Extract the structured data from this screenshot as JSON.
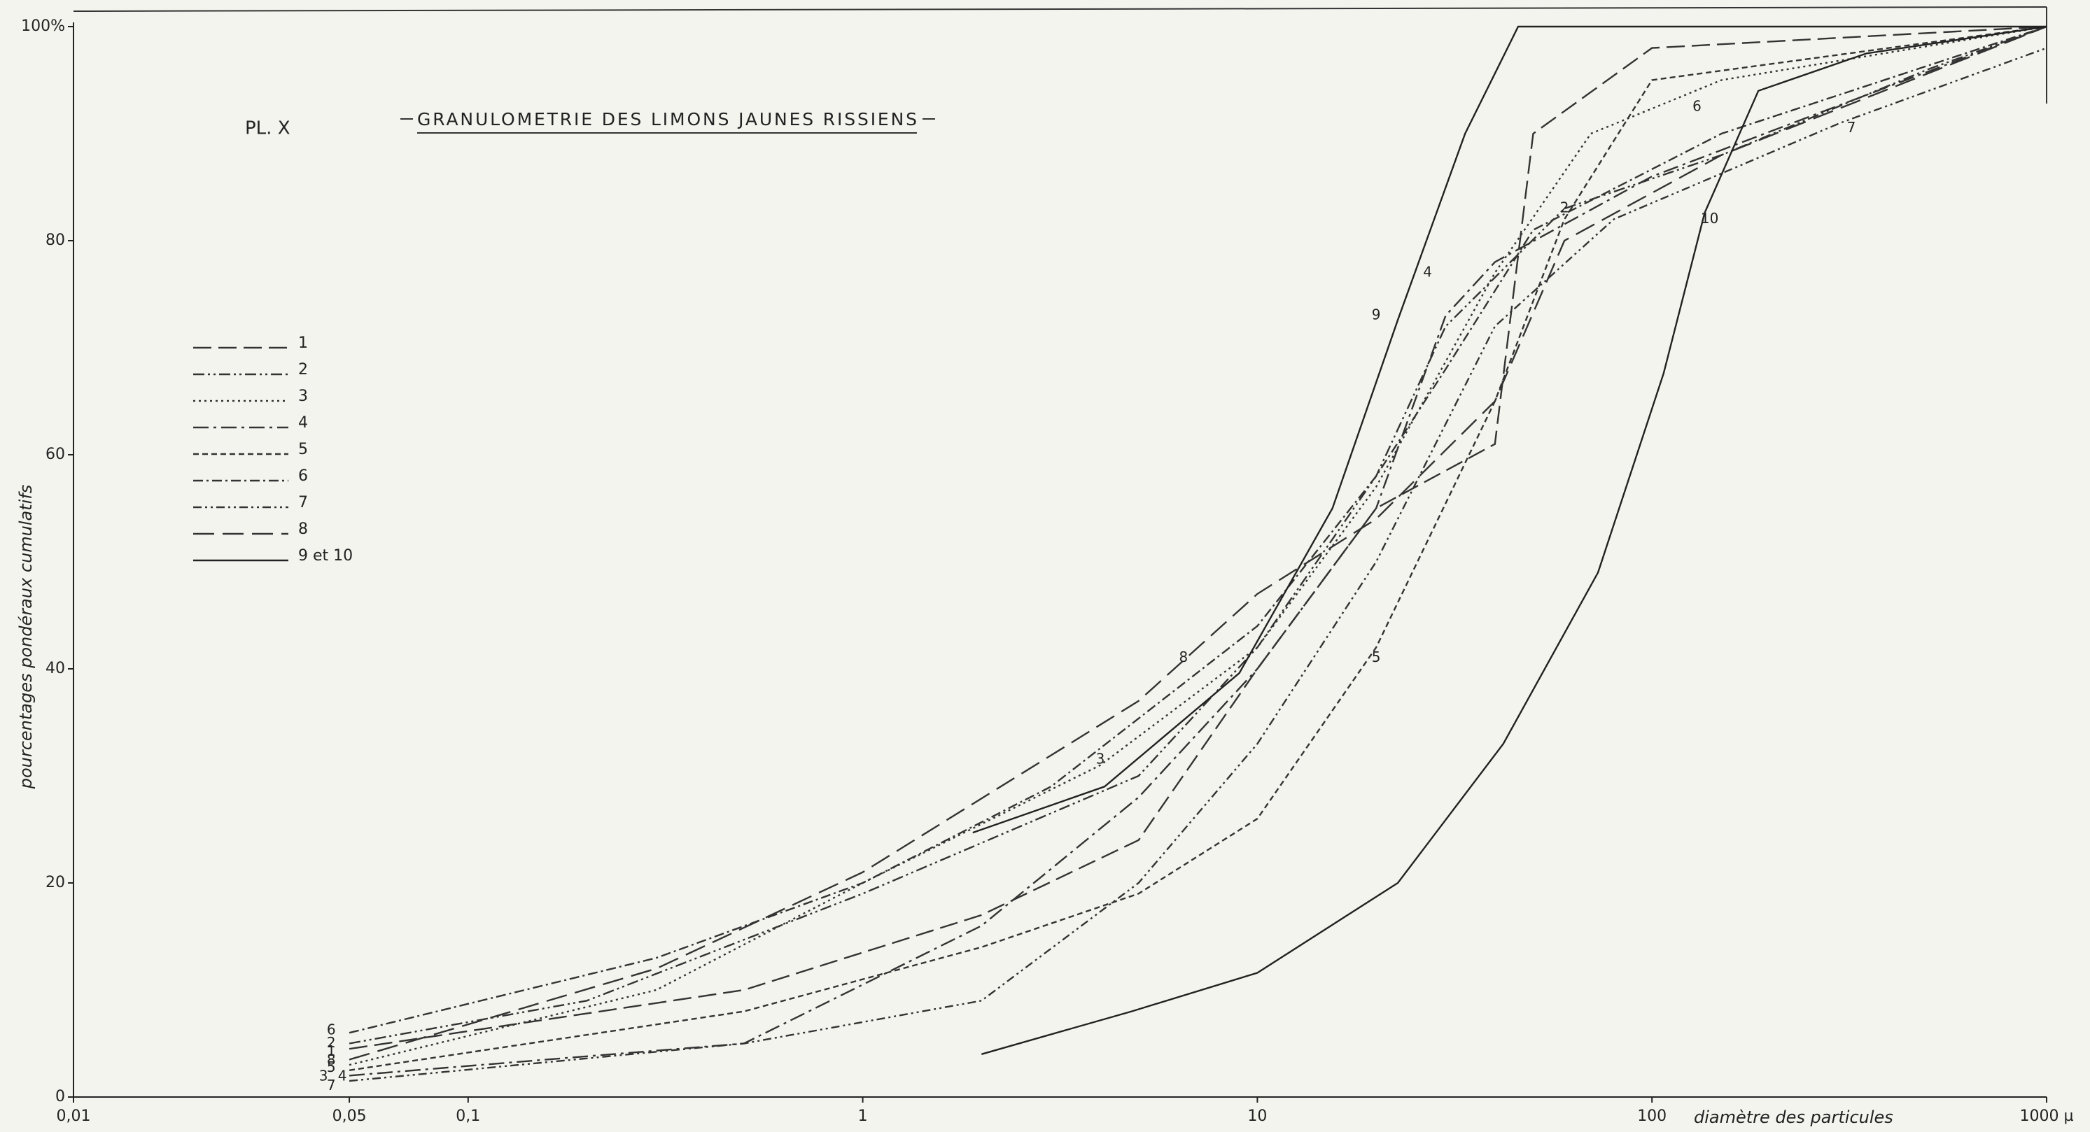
{
  "chart_data": {
    "type": "line",
    "pretitle": "PL. X",
    "title": "GRANULOMETRIE DES LIMONS JAUNES RISSIENS",
    "ylabel": "pourcentages pondéraux cumulatifs",
    "xlabel": "diamètre des particules",
    "xscale": "log",
    "xlim": [
      0.01,
      1000
    ],
    "ylim": [
      0,
      100
    ],
    "xticks": [
      {
        "value": 0.01,
        "label": "0,01"
      },
      {
        "value": 0.05,
        "label": "0,05"
      },
      {
        "value": 0.1,
        "label": "0,1"
      },
      1,
      10,
      100,
      {
        "value": 1000,
        "label": "1000 µ"
      }
    ],
    "yticks": [
      0,
      20,
      40,
      60,
      80,
      {
        "value": 100,
        "label": "100%"
      }
    ],
    "series": [
      {
        "name": "1",
        "color": "#333333",
        "dash": "26 10",
        "x": [
          0.05,
          0.5,
          2,
          5,
          10,
          20,
          40,
          50,
          100,
          1000
        ],
        "values": [
          4.5,
          10,
          17,
          24,
          40,
          55,
          61,
          90,
          98,
          100
        ]
      },
      {
        "name": "2",
        "color": "#333333",
        "dash": "16 5 3 5 3 5",
        "x": [
          0.05,
          0.2,
          1,
          5,
          10,
          20,
          30,
          60,
          150,
          500,
          1000
        ],
        "values": [
          5,
          9,
          19,
          30,
          42,
          58,
          72,
          83,
          88,
          96,
          100
        ]
      },
      {
        "name": "3",
        "color": "#333333",
        "dash": "3 5",
        "x": [
          0.05,
          0.3,
          1,
          4,
          10,
          20,
          40,
          70,
          150,
          1000
        ],
        "values": [
          3,
          10,
          20,
          31,
          42,
          57,
          77,
          90,
          95,
          100
        ]
      },
      {
        "name": "4",
        "color": "#333333",
        "dash": "22 7 4 7",
        "x": [
          0.05,
          0.5,
          2,
          5,
          10,
          20,
          30,
          40,
          100,
          1000
        ],
        "values": [
          2,
          5,
          16,
          28,
          40,
          55,
          73,
          78,
          86,
          100
        ]
      },
      {
        "name": "5",
        "color": "#333333",
        "dash": "8 5",
        "x": [
          0.05,
          0.5,
          2,
          5,
          10,
          20,
          40,
          60,
          100,
          1000
        ],
        "values": [
          2.5,
          8,
          14,
          19,
          26,
          42,
          65,
          82,
          95,
          100
        ]
      },
      {
        "name": "6",
        "color": "#333333",
        "dash": "14 5 3 5",
        "x": [
          0.05,
          0.3,
          1,
          3,
          10,
          20,
          30,
          50,
          150,
          1000
        ],
        "values": [
          6,
          13,
          20,
          29,
          44,
          58,
          68,
          81,
          90,
          100
        ]
      },
      {
        "name": "7",
        "color": "#333333",
        "dash": "12 5 3 5 3 5",
        "x": [
          0.05,
          0.5,
          2,
          5,
          10,
          20,
          40,
          80,
          300,
          1000
        ],
        "values": [
          1.5,
          5,
          9,
          20,
          33,
          50,
          72,
          82,
          91,
          98
        ]
      },
      {
        "name": "8",
        "color": "#333333",
        "dash": "30 12",
        "x": [
          0.05,
          0.3,
          1,
          5,
          10,
          20,
          40,
          60,
          150,
          1000
        ],
        "values": [
          3.5,
          12,
          21,
          37,
          47,
          54,
          65,
          80,
          88,
          100
        ]
      },
      {
        "name": "9 et 10",
        "color": "#222222",
        "dash": "",
        "x": [
          1.9,
          4.1,
          9,
          15.5,
          22.7,
          33.6,
          45.8,
          100,
          1000,
          null,
          2,
          4.8,
          10,
          22.7,
          42,
          73,
          107,
          136,
          186,
          350,
          1000
        ],
        "values": [
          24.7,
          29,
          39.6,
          55,
          72.6,
          90,
          100,
          100,
          100,
          null,
          4,
          8,
          11.6,
          20,
          33,
          49,
          67.6,
          82.6,
          94,
          97.5,
          100
        ]
      }
    ],
    "annotations": [
      {
        "text": "9",
        "x": 20,
        "y": 73
      },
      {
        "text": "10",
        "x": 140,
        "y": 82
      },
      {
        "text": "8",
        "x": 6.5,
        "y": 41
      },
      {
        "text": "3",
        "x": 4,
        "y": 31.5
      },
      {
        "text": "5",
        "x": 20,
        "y": 41
      },
      {
        "text": "4",
        "x": 27,
        "y": 77
      },
      {
        "text": "2",
        "x": 60,
        "y": 83
      },
      {
        "text": "6",
        "x": 130,
        "y": 92.5
      },
      {
        "text": "7",
        "x": 320,
        "y": 90.5
      },
      {
        "text": "6",
        "x": 0.045,
        "y": 6.2
      },
      {
        "text": "2",
        "x": 0.045,
        "y": 5
      },
      {
        "text": "1",
        "x": 0.045,
        "y": 4.2
      },
      {
        "text": "8",
        "x": 0.045,
        "y": 3.4
      },
      {
        "text": "5",
        "x": 0.045,
        "y": 2.7
      },
      {
        "text": "3",
        "x": 0.043,
        "y": 1.9
      },
      {
        "text": "4",
        "x": 0.048,
        "y": 1.9
      },
      {
        "text": "7",
        "x": 0.045,
        "y": 1
      }
    ]
  }
}
